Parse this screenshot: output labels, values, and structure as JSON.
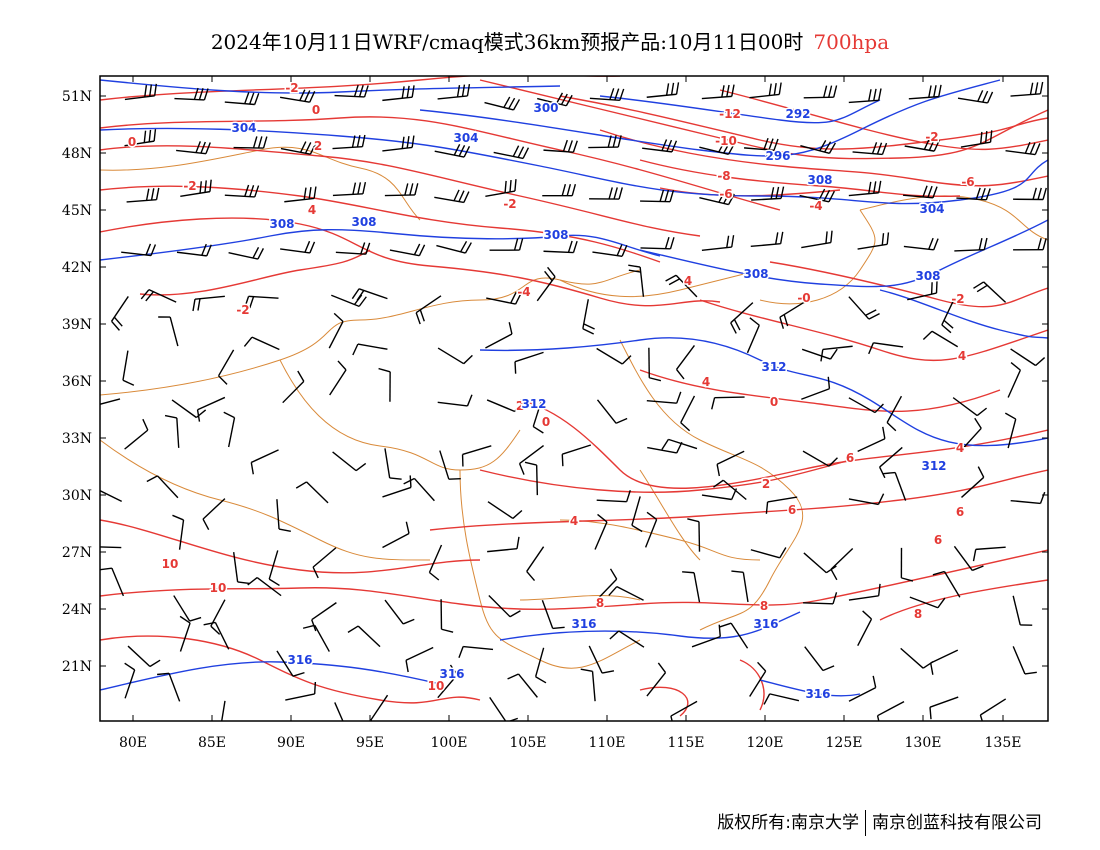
{
  "title": {
    "main": "2024年10月11日WRF/cmaq模式36km预报产品:10月11日00时",
    "level": "700hpa",
    "level_color": "#e53935"
  },
  "axes": {
    "lat_labels": [
      "51N",
      "48N",
      "45N",
      "42N",
      "39N",
      "36N",
      "33N",
      "30N",
      "27N",
      "24N",
      "21N"
    ],
    "lon_labels": [
      "80E",
      "85E",
      "90E",
      "95E",
      "100E",
      "105E",
      "110E",
      "115E",
      "120E",
      "125E",
      "130E",
      "135E"
    ]
  },
  "legend_colors": {
    "temperature_contours": "#e53935",
    "geopotential_height_contours": "#2040e0",
    "boundaries": "#d98a3a",
    "wind_barbs": "#000000"
  },
  "temperature_labels": [
    {
      "text": "-2"
    },
    {
      "text": "0"
    },
    {
      "text": "0"
    },
    {
      "text": "2"
    },
    {
      "text": "-2"
    },
    {
      "text": "4"
    },
    {
      "text": "-2"
    },
    {
      "text": "-12"
    },
    {
      "text": "-10"
    },
    {
      "text": "-8"
    },
    {
      "text": "-6"
    },
    {
      "text": "-4"
    },
    {
      "text": "-2"
    },
    {
      "text": "-6"
    },
    {
      "text": "-4"
    },
    {
      "text": "4"
    },
    {
      "text": "-2"
    },
    {
      "text": "-0"
    },
    {
      "text": "-2"
    },
    {
      "text": "4"
    },
    {
      "text": "4"
    },
    {
      "text": "0"
    },
    {
      "text": "2"
    },
    {
      "text": "0"
    },
    {
      "text": "6"
    },
    {
      "text": "4"
    },
    {
      "text": "2"
    },
    {
      "text": "4"
    },
    {
      "text": "6"
    },
    {
      "text": "6"
    },
    {
      "text": "6"
    },
    {
      "text": "8"
    },
    {
      "text": "8"
    },
    {
      "text": "10"
    },
    {
      "text": "8"
    },
    {
      "text": "10"
    },
    {
      "text": "10"
    }
  ],
  "height_labels": [
    {
      "text": "304"
    },
    {
      "text": "304"
    },
    {
      "text": "300"
    },
    {
      "text": "292"
    },
    {
      "text": "296"
    },
    {
      "text": "308"
    },
    {
      "text": "308"
    },
    {
      "text": "308"
    },
    {
      "text": "308"
    },
    {
      "text": "304"
    },
    {
      "text": "308"
    },
    {
      "text": "308"
    },
    {
      "text": "312"
    },
    {
      "text": "312"
    },
    {
      "text": "312"
    },
    {
      "text": "316"
    },
    {
      "text": "316"
    },
    {
      "text": "316"
    },
    {
      "text": "316"
    },
    {
      "text": "316"
    }
  ],
  "copyright": {
    "left": "版权所有:南京大学",
    "right": "南京创蓝科技有限公司"
  }
}
